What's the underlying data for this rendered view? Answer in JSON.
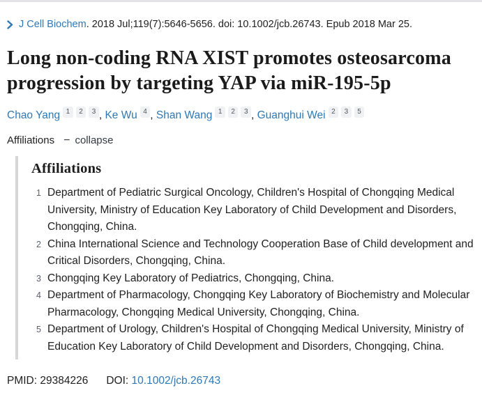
{
  "colors": {
    "link": "#2e78b5",
    "text": "#212121",
    "muted": "#5b616b",
    "badge_bg": "#eff1f2",
    "badge_text": "#53575d",
    "panel_border": "#d5d7d9",
    "top_rule": "#e4e4e6",
    "title": "#1b1b1b"
  },
  "breadcrumb": {
    "journal": "J Cell Biochem",
    "citation_rest": ". 2018 Jul;119(7):5646-5656. doi: 10.1002/jcb.26743. Epub 2018 Mar 25."
  },
  "title": {
    "line1": "Long non-coding RNA XIST promotes osteosarcoma",
    "line2": "progression by targeting YAP via miR-195-5p"
  },
  "authors": {
    "separator": ", ",
    "items": [
      {
        "name": "Chao Yang",
        "sups": [
          "1",
          "2",
          "3"
        ]
      },
      {
        "name": "Ke Wu",
        "sups": [
          "4"
        ]
      },
      {
        "name": "Shan Wang",
        "sups": [
          "1",
          "2",
          "3"
        ]
      },
      {
        "name": "Guanghui Wei",
        "sups": [
          "2",
          "3",
          "5"
        ]
      }
    ]
  },
  "affiliations_toggle": {
    "label": "Affiliations",
    "icon_glyph": "−",
    "action_label": "collapse"
  },
  "affiliations": {
    "heading": "Affiliations",
    "items": [
      {
        "num": "1",
        "text": "Department of Pediatric Surgical Oncology, Children's Hospital of Chongqing Medical University, Ministry of Education Key Laboratory of Child Development and Disorders, Chongqing, China."
      },
      {
        "num": "2",
        "text": "China International Science and Technology Cooperation Base of Child development and Critical Disorders, Chongqing, China."
      },
      {
        "num": "3",
        "text": "Chongqing Key Laboratory of Pediatrics, Chongqing, China."
      },
      {
        "num": "4",
        "text": "Department of Pharmacology, Chongqing Key Laboratory of Biochemistry and Molecular Pharmacology, Chongqing Medical University, Chongqing, China."
      },
      {
        "num": "5",
        "text": "Department of Urology, Children's Hospital of Chongqing Medical University, Ministry of Education Key Laboratory of Child Development and Disorders, Chongqing, China."
      }
    ]
  },
  "identifiers": {
    "pmid_label": "PMID:",
    "pmid_value": "29384226",
    "doi_label": "DOI:",
    "doi_value": "10.1002/jcb.26743"
  }
}
